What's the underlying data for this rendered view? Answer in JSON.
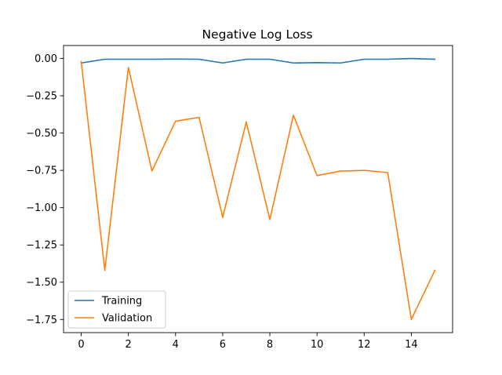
{
  "chart_data": {
    "type": "line",
    "title": "Negative Log Loss",
    "xlabel": "",
    "ylabel": "",
    "x": [
      0,
      1,
      2,
      3,
      4,
      5,
      6,
      7,
      8,
      9,
      10,
      11,
      12,
      13,
      14,
      15
    ],
    "series": [
      {
        "name": "Training",
        "color": "#1f77b4",
        "values": [
          -0.03,
          -0.005,
          -0.005,
          -0.005,
          -0.004,
          -0.005,
          -0.03,
          -0.005,
          -0.005,
          -0.03,
          -0.028,
          -0.03,
          -0.005,
          -0.005,
          0.0,
          -0.005
        ]
      },
      {
        "name": "Validation",
        "color": "#ff7f0e",
        "values": [
          -0.02,
          -1.42,
          -0.06,
          -0.755,
          -0.42,
          -0.395,
          -1.065,
          -0.425,
          -1.08,
          -0.38,
          -0.785,
          -0.755,
          -0.75,
          -0.765,
          -1.75,
          -1.42
        ]
      }
    ],
    "xlim": [
      -0.75,
      15.75
    ],
    "ylim": [
      -1.838,
      0.087
    ],
    "xticks": [
      0,
      2,
      4,
      6,
      8,
      10,
      12,
      14
    ],
    "xtick_labels": [
      "0",
      "2",
      "4",
      "6",
      "8",
      "10",
      "12",
      "14"
    ],
    "yticks": [
      0.0,
      -0.25,
      -0.5,
      -0.75,
      -1.0,
      -1.25,
      -1.5,
      -1.75
    ],
    "ytick_labels": [
      "0.00",
      "−0.25",
      "−0.50",
      "−0.75",
      "−1.00",
      "−1.25",
      "−1.50",
      "−1.75"
    ],
    "grid": false,
    "legend_position": "bottom-left"
  }
}
